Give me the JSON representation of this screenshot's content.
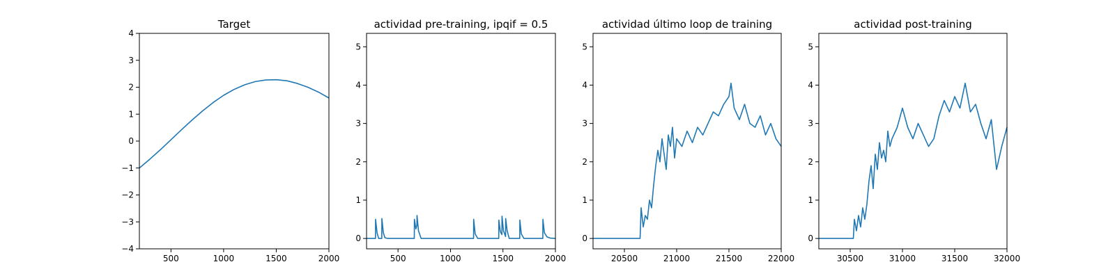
{
  "chart_data": [
    {
      "type": "line",
      "title": "Target",
      "xlabel": "",
      "ylabel": "",
      "xlim": [
        200,
        2000
      ],
      "ylim": [
        -4,
        4
      ],
      "xticks": [
        500,
        1000,
        1500,
        2000
      ],
      "yticks": [
        -4,
        -3,
        -2,
        -1,
        0,
        1,
        2,
        3,
        4
      ],
      "color": "#1f77b4",
      "series": [
        {
          "x": [
            200,
            300,
            400,
            500,
            600,
            700,
            800,
            900,
            1000,
            1100,
            1200,
            1300,
            1400,
            1500,
            1600,
            1700,
            1800,
            1900,
            2000
          ],
          "y": [
            -1.0,
            -0.67,
            -0.32,
            0.05,
            0.42,
            0.78,
            1.12,
            1.43,
            1.7,
            1.92,
            2.09,
            2.21,
            2.27,
            2.28,
            2.24,
            2.14,
            2.0,
            1.82,
            1.6
          ]
        }
      ]
    },
    {
      "type": "line",
      "title": "actividad pre-training, ipqif = 0.5",
      "xlabel": "",
      "ylabel": "",
      "xlim": [
        200,
        2000
      ],
      "ylim": [
        -0.27,
        5.35
      ],
      "xticks": [
        500,
        1000,
        1500,
        2000
      ],
      "yticks": [
        0,
        1,
        2,
        3,
        4,
        5
      ],
      "color": "#1f77b4",
      "series": [
        {
          "x": [
            200,
            285,
            286,
            300,
            315,
            345,
            346,
            360,
            375,
            400,
            655,
            656,
            670,
            680,
            681,
            695,
            720,
            1220,
            1221,
            1235,
            1260,
            1460,
            1461,
            1475,
            1490,
            1491,
            1505,
            1525,
            1526,
            1540,
            1560,
            1660,
            1661,
            1675,
            1700,
            1880,
            1881,
            1895,
            1920,
            1950,
            2000
          ],
          "y": [
            0,
            0,
            0.5,
            0.15,
            0.0,
            0,
            0.52,
            0.15,
            0.02,
            0,
            0,
            0.5,
            0.25,
            0.35,
            0.6,
            0.2,
            0,
            0,
            0.5,
            0.12,
            0,
            0,
            0.48,
            0.18,
            0.1,
            0.58,
            0.2,
            0.05,
            0.52,
            0.2,
            0.0,
            0,
            0.48,
            0.12,
            0,
            0,
            0.5,
            0.15,
            0.04,
            0.01,
            0
          ]
        }
      ]
    },
    {
      "type": "line",
      "title": "actividad último loop de training",
      "xlabel": "",
      "ylabel": "",
      "xlim": [
        20200,
        22000
      ],
      "ylim": [
        -0.27,
        5.35
      ],
      "xticks": [
        20500,
        21000,
        21500,
        22000
      ],
      "yticks": [
        0,
        1,
        2,
        3,
        4,
        5
      ],
      "color": "#1f77b4",
      "series": [
        {
          "x": [
            20200,
            20650,
            20660,
            20680,
            20700,
            20720,
            20740,
            20760,
            20780,
            20800,
            20820,
            20840,
            20860,
            20880,
            20900,
            20920,
            20940,
            20960,
            20980,
            21000,
            21050,
            21100,
            21150,
            21200,
            21250,
            21300,
            21350,
            21400,
            21450,
            21500,
            21520,
            21550,
            21600,
            21650,
            21700,
            21750,
            21800,
            21850,
            21900,
            21950,
            22000
          ],
          "y": [
            0,
            0,
            0.8,
            0.3,
            0.6,
            0.5,
            1.0,
            0.8,
            1.4,
            1.9,
            2.3,
            2.0,
            2.6,
            2.2,
            1.8,
            2.7,
            2.4,
            2.9,
            2.1,
            2.6,
            2.4,
            2.8,
            2.5,
            2.9,
            2.7,
            3.0,
            3.3,
            3.2,
            3.5,
            3.7,
            4.05,
            3.4,
            3.1,
            3.5,
            3.0,
            2.9,
            3.2,
            2.7,
            3.0,
            2.6,
            2.4
          ]
        }
      ]
    },
    {
      "type": "line",
      "title": "actividad post-training",
      "xlabel": "",
      "ylabel": "",
      "xlim": [
        30200,
        32000
      ],
      "ylim": [
        -0.27,
        5.35
      ],
      "xticks": [
        30500,
        31000,
        31500,
        32000
      ],
      "yticks": [
        0,
        1,
        2,
        3,
        4,
        5
      ],
      "color": "#1f77b4",
      "series": [
        {
          "x": [
            30200,
            30530,
            30540,
            30560,
            30580,
            30600,
            30620,
            30640,
            30660,
            30680,
            30700,
            30720,
            30740,
            30760,
            30780,
            30800,
            30820,
            30840,
            30860,
            30880,
            30900,
            30950,
            31000,
            31050,
            31100,
            31150,
            31200,
            31250,
            31300,
            31350,
            31400,
            31450,
            31500,
            31550,
            31600,
            31650,
            31700,
            31750,
            31800,
            31850,
            31900,
            31950,
            32000
          ],
          "y": [
            0,
            0,
            0.5,
            0.2,
            0.6,
            0.3,
            0.8,
            0.5,
            0.9,
            1.5,
            1.9,
            1.3,
            2.2,
            1.8,
            2.5,
            2.1,
            2.3,
            2.0,
            2.8,
            2.4,
            2.6,
            2.9,
            3.4,
            2.9,
            2.6,
            3.0,
            2.7,
            2.4,
            2.6,
            3.2,
            3.6,
            3.3,
            3.7,
            3.4,
            4.05,
            3.3,
            3.5,
            3.0,
            2.6,
            3.1,
            1.8,
            2.4,
            2.9
          ]
        }
      ]
    }
  ]
}
